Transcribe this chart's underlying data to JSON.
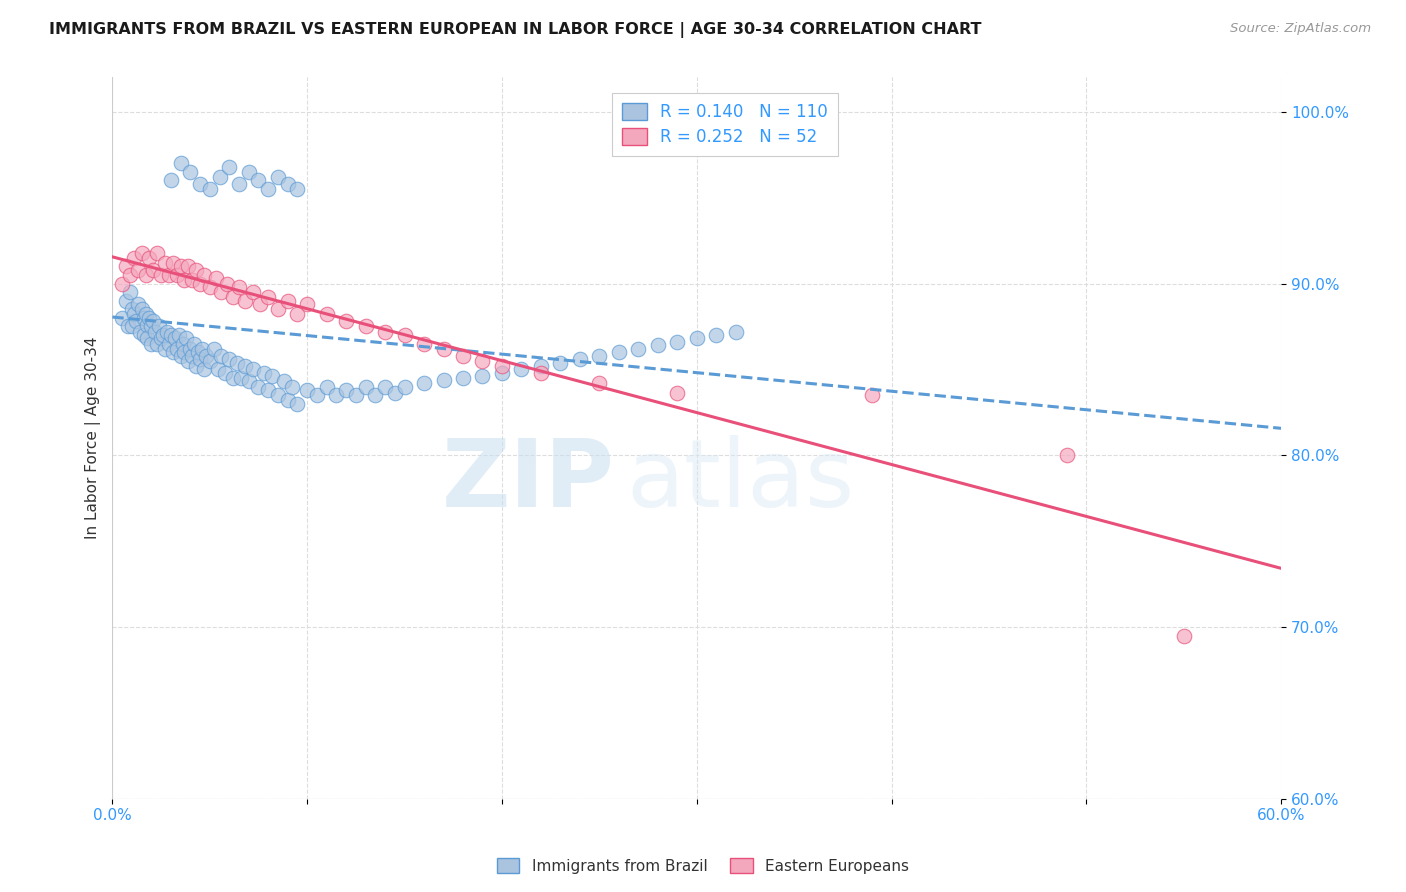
{
  "title": "IMMIGRANTS FROM BRAZIL VS EASTERN EUROPEAN IN LABOR FORCE | AGE 30-34 CORRELATION CHART",
  "source": "Source: ZipAtlas.com",
  "ylabel": "In Labor Force | Age 30-34",
  "xlim": [
    0.0,
    0.6
  ],
  "ylim": [
    0.6,
    1.02
  ],
  "yticks": [
    0.6,
    0.7,
    0.8,
    0.9,
    1.0
  ],
  "ytick_labels": [
    "60.0%",
    "70.0%",
    "80.0%",
    "90.0%",
    "100.0%"
  ],
  "xticks": [
    0.0,
    0.1,
    0.2,
    0.3,
    0.4,
    0.5,
    0.6
  ],
  "xtick_labels": [
    "0.0%",
    "",
    "",
    "",
    "",
    "",
    "60.0%"
  ],
  "brazil_R": 0.14,
  "brazil_N": 110,
  "eastern_R": 0.252,
  "eastern_N": 52,
  "brazil_color": "#aac4e0",
  "eastern_color": "#f4a8be",
  "brazil_edge_color": "#5b9bd5",
  "eastern_edge_color": "#e8507a",
  "brazil_line_color": "#5b9bd5",
  "eastern_line_color": "#e8507a",
  "watermark_zip": "ZIP",
  "watermark_atlas": "atlas",
  "brazil_scatter_x": [
    0.005,
    0.007,
    0.008,
    0.009,
    0.01,
    0.01,
    0.011,
    0.012,
    0.013,
    0.014,
    0.015,
    0.016,
    0.016,
    0.017,
    0.018,
    0.018,
    0.019,
    0.02,
    0.02,
    0.021,
    0.022,
    0.023,
    0.024,
    0.025,
    0.026,
    0.027,
    0.028,
    0.029,
    0.03,
    0.031,
    0.032,
    0.033,
    0.034,
    0.035,
    0.036,
    0.037,
    0.038,
    0.039,
    0.04,
    0.041,
    0.042,
    0.043,
    0.044,
    0.045,
    0.046,
    0.047,
    0.048,
    0.05,
    0.052,
    0.054,
    0.056,
    0.058,
    0.06,
    0.062,
    0.064,
    0.066,
    0.068,
    0.07,
    0.072,
    0.075,
    0.078,
    0.08,
    0.082,
    0.085,
    0.088,
    0.09,
    0.092,
    0.095,
    0.1,
    0.105,
    0.11,
    0.115,
    0.12,
    0.125,
    0.13,
    0.135,
    0.14,
    0.145,
    0.15,
    0.16,
    0.17,
    0.18,
    0.19,
    0.2,
    0.21,
    0.22,
    0.23,
    0.24,
    0.25,
    0.26,
    0.27,
    0.28,
    0.29,
    0.3,
    0.31,
    0.32,
    0.03,
    0.035,
    0.04,
    0.045,
    0.05,
    0.055,
    0.06,
    0.065,
    0.07,
    0.075,
    0.08,
    0.085,
    0.09,
    0.095
  ],
  "brazil_scatter_y": [
    0.88,
    0.89,
    0.875,
    0.895,
    0.885,
    0.875,
    0.882,
    0.878,
    0.888,
    0.872,
    0.885,
    0.88,
    0.87,
    0.882,
    0.876,
    0.868,
    0.88,
    0.875,
    0.865,
    0.878,
    0.872,
    0.865,
    0.875,
    0.868,
    0.87,
    0.862,
    0.872,
    0.865,
    0.87,
    0.86,
    0.868,
    0.862,
    0.87,
    0.858,
    0.865,
    0.86,
    0.868,
    0.855,
    0.862,
    0.858,
    0.865,
    0.852,
    0.86,
    0.856,
    0.862,
    0.85,
    0.858,
    0.855,
    0.862,
    0.85,
    0.858,
    0.848,
    0.856,
    0.845,
    0.854,
    0.845,
    0.852,
    0.843,
    0.85,
    0.84,
    0.848,
    0.838,
    0.846,
    0.835,
    0.843,
    0.832,
    0.84,
    0.83,
    0.838,
    0.835,
    0.84,
    0.835,
    0.838,
    0.835,
    0.84,
    0.835,
    0.84,
    0.836,
    0.84,
    0.842,
    0.844,
    0.845,
    0.846,
    0.848,
    0.85,
    0.852,
    0.854,
    0.856,
    0.858,
    0.86,
    0.862,
    0.864,
    0.866,
    0.868,
    0.87,
    0.872,
    0.96,
    0.97,
    0.965,
    0.958,
    0.955,
    0.962,
    0.968,
    0.958,
    0.965,
    0.96,
    0.955,
    0.962,
    0.958,
    0.955
  ],
  "eastern_scatter_x": [
    0.005,
    0.007,
    0.009,
    0.011,
    0.013,
    0.015,
    0.017,
    0.019,
    0.021,
    0.023,
    0.025,
    0.027,
    0.029,
    0.031,
    0.033,
    0.035,
    0.037,
    0.039,
    0.041,
    0.043,
    0.045,
    0.047,
    0.05,
    0.053,
    0.056,
    0.059,
    0.062,
    0.065,
    0.068,
    0.072,
    0.076,
    0.08,
    0.085,
    0.09,
    0.095,
    0.1,
    0.11,
    0.12,
    0.13,
    0.14,
    0.15,
    0.16,
    0.17,
    0.18,
    0.19,
    0.2,
    0.22,
    0.25,
    0.29,
    0.39,
    0.49,
    0.55
  ],
  "eastern_scatter_y": [
    0.9,
    0.91,
    0.905,
    0.915,
    0.908,
    0.918,
    0.905,
    0.915,
    0.908,
    0.918,
    0.905,
    0.912,
    0.905,
    0.912,
    0.905,
    0.91,
    0.902,
    0.91,
    0.902,
    0.908,
    0.9,
    0.905,
    0.898,
    0.903,
    0.895,
    0.9,
    0.892,
    0.898,
    0.89,
    0.895,
    0.888,
    0.892,
    0.885,
    0.89,
    0.882,
    0.888,
    0.882,
    0.878,
    0.875,
    0.872,
    0.87,
    0.865,
    0.862,
    0.858,
    0.855,
    0.852,
    0.848,
    0.842,
    0.836,
    0.835,
    0.8,
    0.695
  ]
}
